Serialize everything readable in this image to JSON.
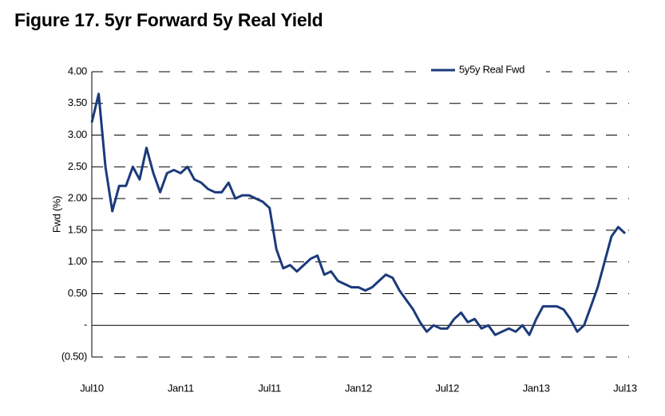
{
  "chart_data": {
    "type": "line",
    "title": "Figure 17. 5yr Forward 5y Real Yield",
    "y_label": "Fwd (%)",
    "categories": [
      "Jul10",
      null,
      null,
      null,
      null,
      null,
      null,
      null,
      null,
      null,
      null,
      null,
      null,
      "Jan11",
      null,
      null,
      null,
      null,
      null,
      null,
      null,
      null,
      null,
      null,
      null,
      null,
      "Jul11",
      null,
      null,
      null,
      null,
      null,
      null,
      null,
      null,
      null,
      null,
      null,
      null,
      "Jan12",
      null,
      null,
      null,
      null,
      null,
      null,
      null,
      null,
      null,
      null,
      null,
      null,
      "Jul12",
      null,
      null,
      null,
      null,
      null,
      null,
      null,
      null,
      null,
      null,
      null,
      null,
      "Jan13",
      null,
      null,
      null,
      null,
      null,
      null,
      null,
      null,
      null,
      null,
      null,
      null,
      "Jul13"
    ],
    "series": [
      {
        "name": "5y5y Real Fwd",
        "color": "#1b3a7a",
        "values": [
          3.2,
          3.65,
          2.5,
          1.8,
          2.2,
          2.2,
          2.5,
          2.3,
          2.8,
          2.4,
          2.1,
          2.4,
          2.45,
          2.4,
          2.5,
          2.3,
          2.25,
          2.15,
          2.1,
          2.1,
          2.25,
          2.0,
          2.05,
          2.05,
          2.0,
          1.95,
          1.85,
          1.2,
          0.9,
          0.95,
          0.85,
          0.95,
          1.05,
          1.1,
          0.8,
          0.85,
          0.7,
          0.65,
          0.6,
          0.6,
          0.55,
          0.6,
          0.7,
          0.8,
          0.75,
          0.55,
          0.4,
          0.25,
          0.05,
          -0.1,
          0.0,
          -0.05,
          -0.05,
          0.1,
          0.2,
          0.05,
          0.1,
          -0.05,
          0.0,
          -0.15,
          -0.1,
          -0.05,
          -0.1,
          0.0,
          -0.15,
          0.1,
          0.3,
          0.3,
          0.3,
          0.25,
          0.1,
          -0.1,
          0.0,
          0.3,
          0.6,
          1.0,
          1.4,
          1.55,
          1.45
        ]
      }
    ],
    "ylim": [
      -0.5,
      4.0
    ],
    "yticks": [
      {
        "value": 4.0,
        "label": "4.00"
      },
      {
        "value": 3.5,
        "label": "3.50"
      },
      {
        "value": 3.0,
        "label": "3.00"
      },
      {
        "value": 2.5,
        "label": "2.50"
      },
      {
        "value": 2.0,
        "label": "2.00"
      },
      {
        "value": 1.5,
        "label": "1.50"
      },
      {
        "value": 1.0,
        "label": "1.00"
      },
      {
        "value": 0.5,
        "label": "0.50"
      },
      {
        "value": 0,
        "label": "-"
      },
      {
        "value": -0.5,
        "label": "(0.50)"
      }
    ],
    "grid": true,
    "legend": "upper right"
  }
}
